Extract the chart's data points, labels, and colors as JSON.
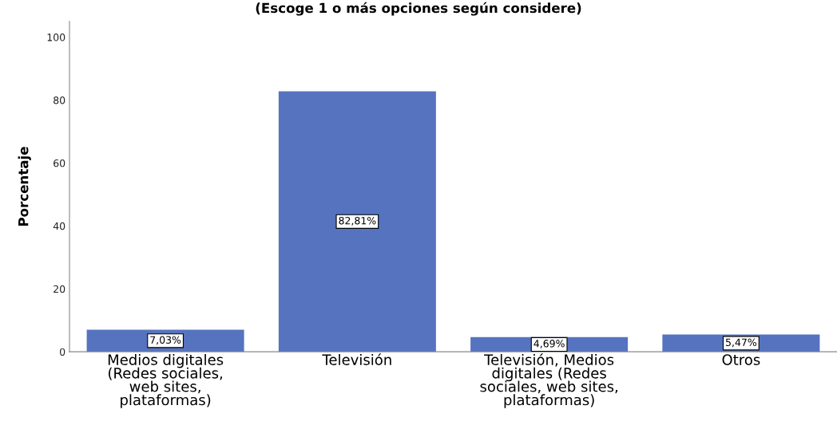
{
  "chart_data": {
    "type": "bar",
    "title": "(Escoge 1 o más opciones según considere)",
    "ylabel": "Porcentaje",
    "categories": [
      "Medios digitales\n(Redes sociales,\nweb sites,\nplataformas)",
      "Televisión",
      "Televisión, Medios\ndigitales (Redes\nsociales, web sites,\nplataformas)",
      "Otros"
    ],
    "values": [
      7.03,
      82.81,
      4.69,
      5.47
    ],
    "color": "#5573bf",
    "value_labels": [
      "7,03%",
      "82,81%",
      "4,69%",
      "5,47%"
    ],
    "ylim": [
      0,
      105
    ],
    "yticks": [
      0,
      20,
      40,
      60,
      80,
      100
    ],
    "grid": false
  }
}
